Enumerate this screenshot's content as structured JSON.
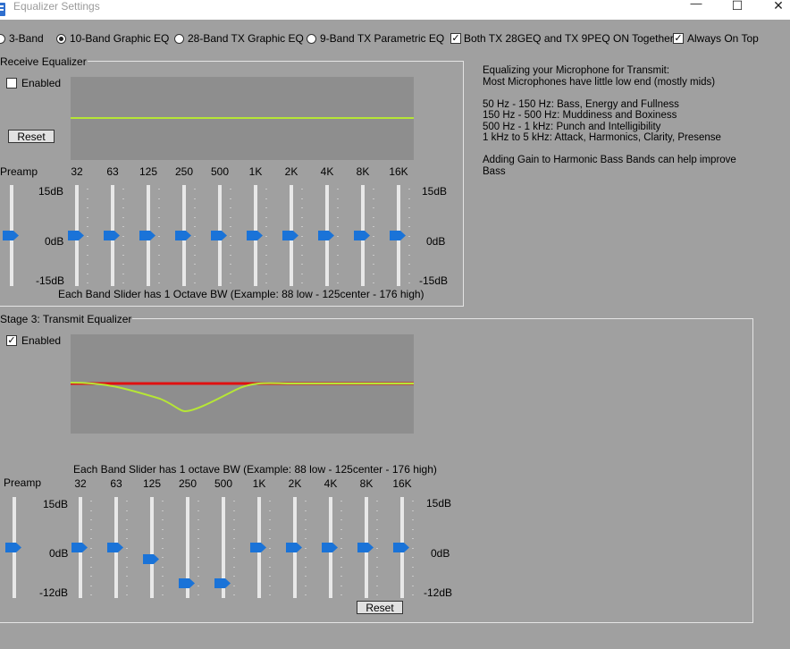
{
  "window": {
    "title": "Equalizer Settings",
    "minimize_glyph": "—",
    "maximize_glyph": "☐",
    "close_glyph": "✕"
  },
  "modes": [
    {
      "label": "3-Band",
      "selected": false
    },
    {
      "label": "10-Band Graphic EQ",
      "selected": true
    },
    {
      "label": "28-Band TX Graphic EQ",
      "selected": false
    },
    {
      "label": "9-Band TX Parametric EQ",
      "selected": false
    }
  ],
  "options": {
    "both_on": {
      "label": "Both TX 28GEQ and TX 9PEQ ON Together",
      "checked": true
    },
    "always_on_top": {
      "label": "Always On Top",
      "checked": true
    }
  },
  "receive": {
    "title": "Receive Equalizer",
    "enabled_label": "Enabled",
    "enabled": false,
    "reset_label": "Reset",
    "preamp_label": "Preamp",
    "bands": [
      "32",
      "63",
      "125",
      "250",
      "500",
      "1K",
      "2K",
      "4K",
      "8K",
      "16K"
    ],
    "scale": {
      "top": "15dB",
      "mid": "0dB",
      "bottom": "-15dB"
    },
    "preamp_level_db": 0,
    "levels_db": [
      0,
      0,
      0,
      0,
      0,
      0,
      0,
      0,
      0,
      0
    ],
    "note": "Each Band Slider has 1 Octave BW (Example: 88 low - 125center  - 176 high)",
    "curve_color": "#b6e636"
  },
  "transmit": {
    "title": "Stage 3: Transmit Equalizer",
    "enabled_label": "Enabled",
    "enabled": true,
    "reset_label": "Reset",
    "preamp_label": "Preamp",
    "bands": [
      "32",
      "63",
      "125",
      "250",
      "500",
      "1K",
      "2K",
      "4K",
      "8K",
      "16K"
    ],
    "scale": {
      "top": "15dB",
      "mid": "0dB",
      "bottom": "-12dB"
    },
    "preamp_level_db": 0,
    "levels_db": [
      0,
      0,
      -4,
      -12,
      -12,
      0,
      0,
      0,
      0,
      0
    ],
    "note": "Each Band Slider has 1 octave BW (Example: 88 low - 125center  - 176 high)",
    "curve_color": "#b6e636",
    "reference_color": "#e01010"
  },
  "info": {
    "lines": [
      "Equalizing your Microphone for Transmit:",
      "Most Microphones have little low end (mostly mids)",
      "",
      "50 Hz - 150 Hz: Bass, Energy and Fullness",
      "150 Hz - 500 Hz: Muddiness and Boxiness",
      "500 Hz - 1 kHz: Punch and Intelligibility",
      "1 kHz to 5 kHz: Attack, Harmonics, Clarity, Presense",
      "",
      "Adding Gain to Harmonic Bass Bands can help improve",
      "Bass"
    ]
  },
  "colors": {
    "thumb": "#1a73d8",
    "track": "#e8e8e8",
    "background": "#a0a0a0",
    "graph": "#8e8e8e"
  }
}
